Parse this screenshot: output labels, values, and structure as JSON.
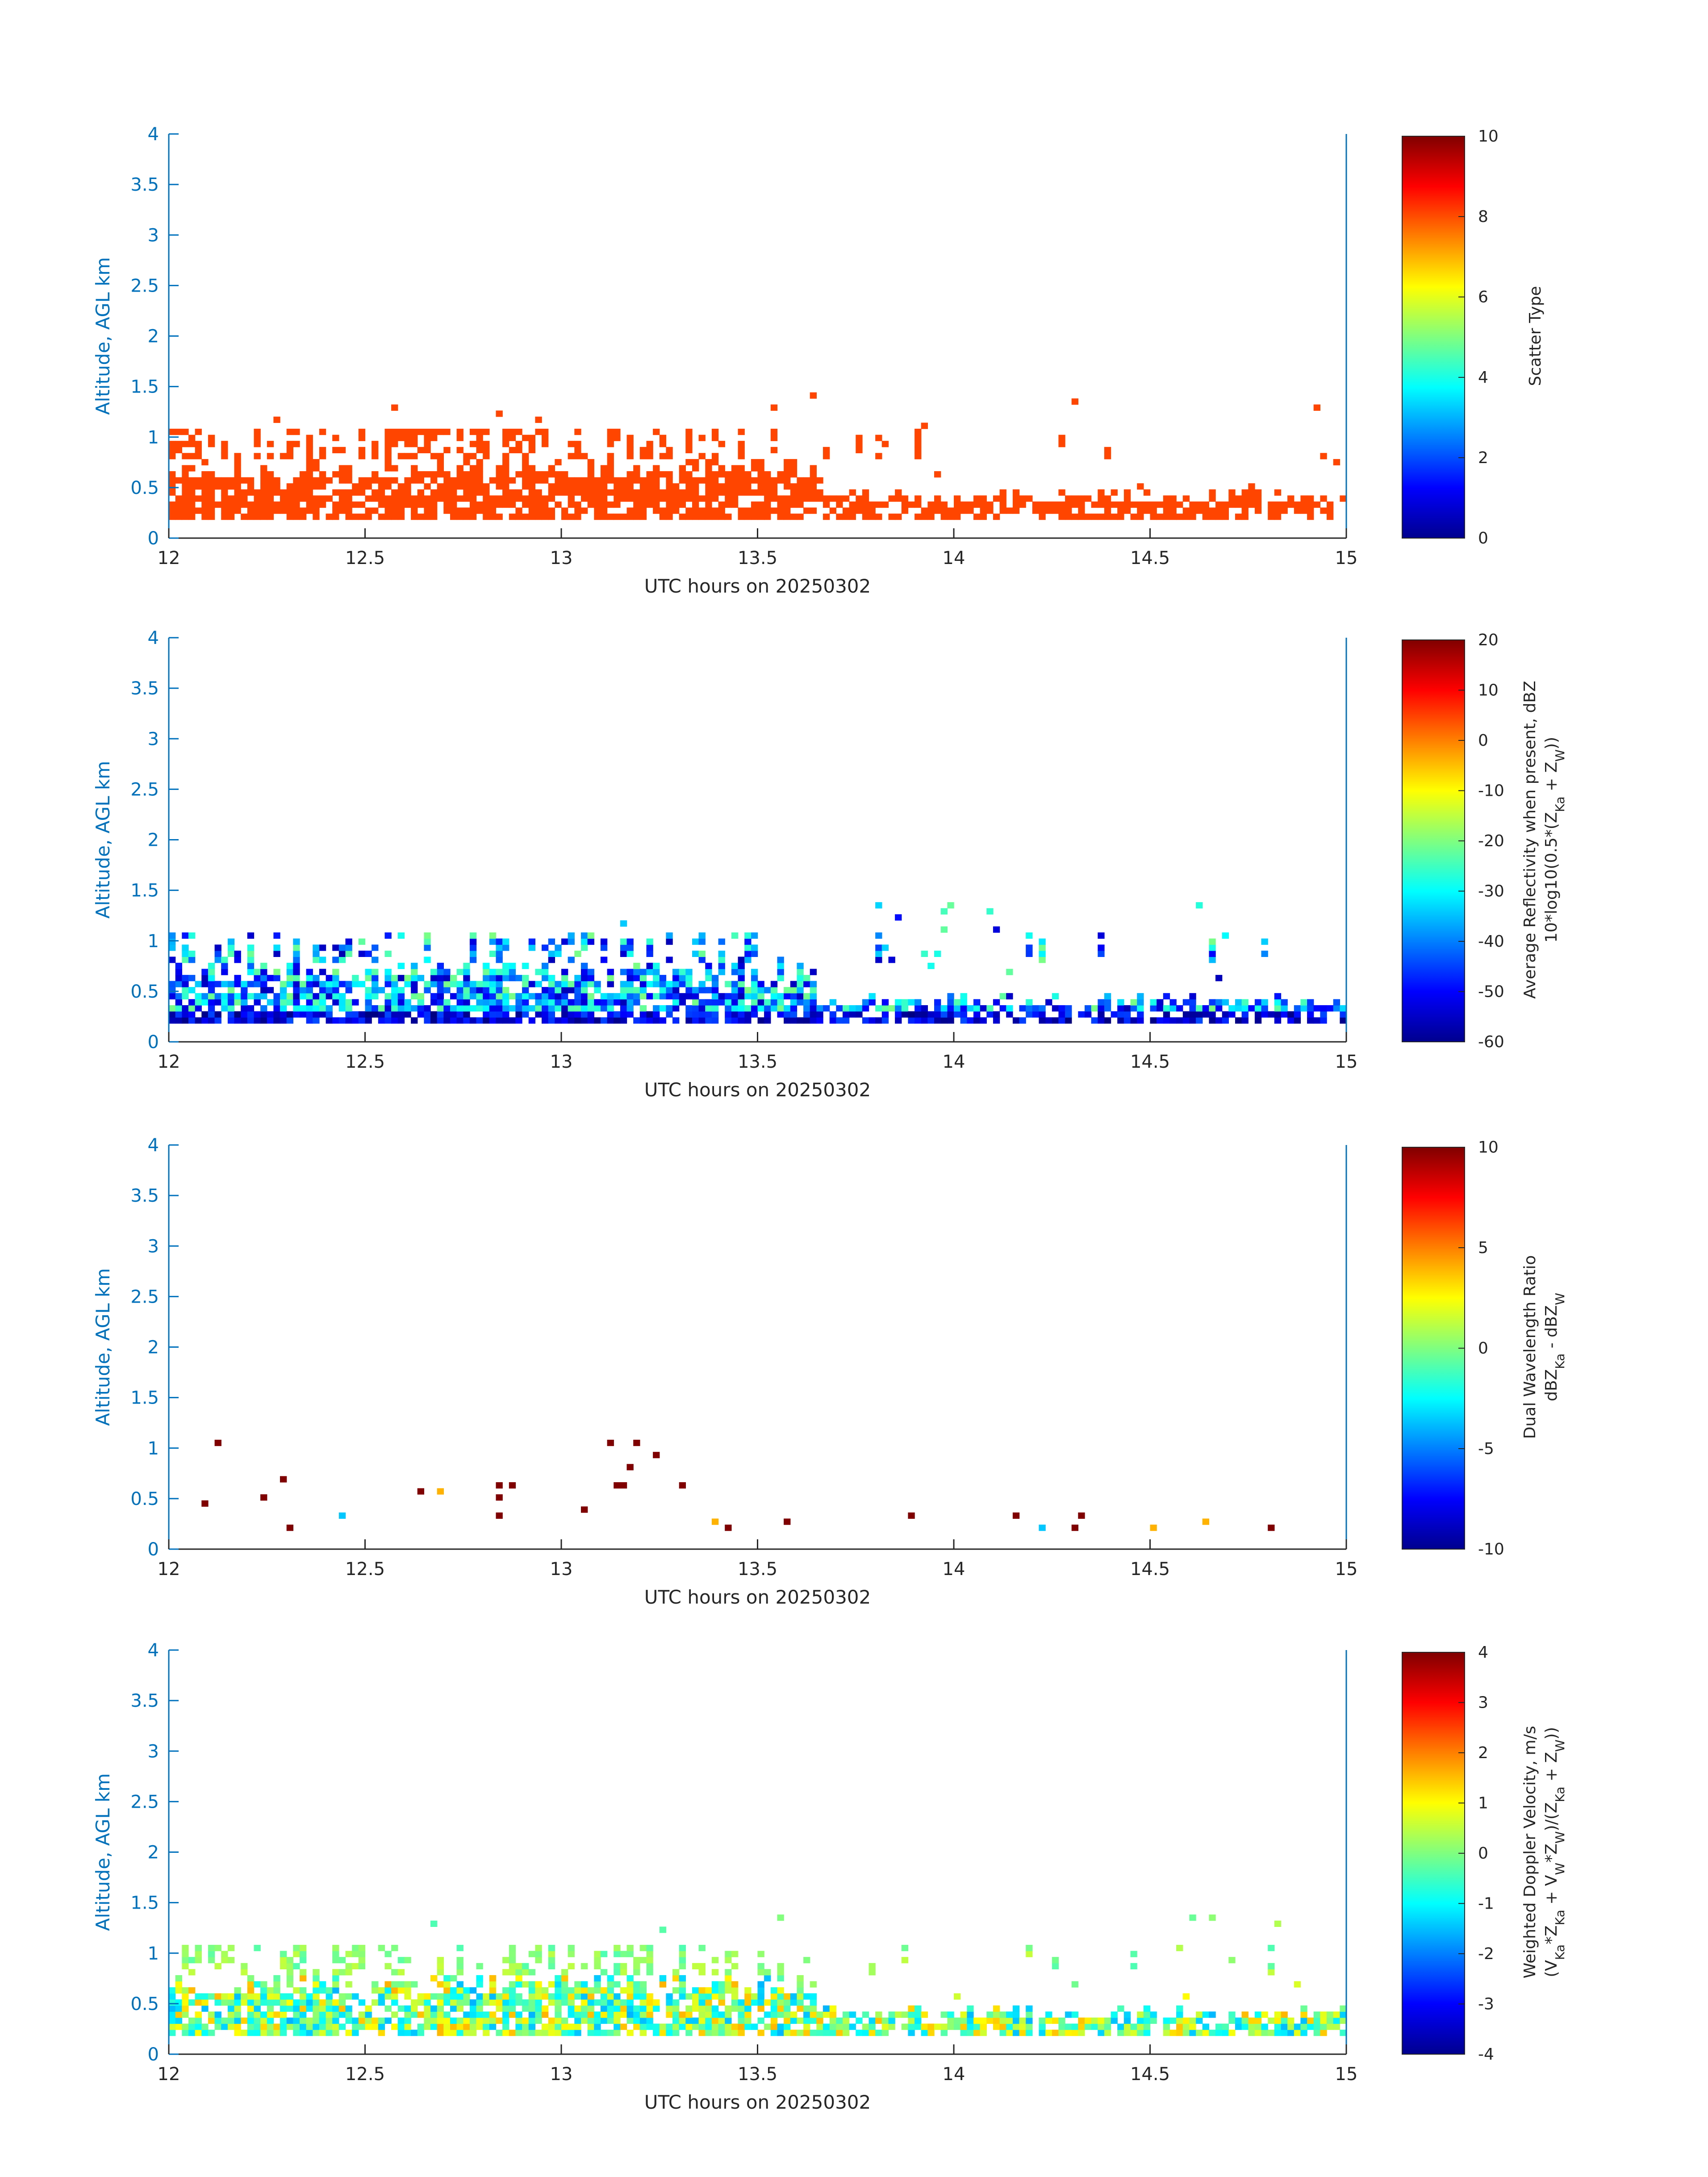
{
  "chart_data": [
    {
      "type": "heatmap",
      "xlabel": "UTC hours on 20250302",
      "ylabel": "Altitude, AGL km",
      "xlim": [
        12,
        15
      ],
      "ylim": [
        0,
        4
      ],
      "xticks": [
        "12",
        "12.5",
        "13",
        "13.5",
        "14",
        "14.5",
        "15"
      ],
      "yticks": [
        "0",
        "0.5",
        "1",
        "1.5",
        "2",
        "2.5",
        "3",
        "3.5",
        "4"
      ],
      "colorbar": {
        "label_lines": [
          "Scatter Type"
        ],
        "range": [
          0,
          10
        ],
        "ticks": [
          "0",
          "2",
          "4",
          "6",
          "8",
          "10"
        ],
        "colormap": "jet"
      },
      "field": "scatter",
      "seed": 11
    },
    {
      "type": "heatmap",
      "xlabel": "UTC hours on 20250302",
      "ylabel": "Altitude, AGL km",
      "xlim": [
        12,
        15
      ],
      "ylim": [
        0,
        4
      ],
      "xticks": [
        "12",
        "12.5",
        "13",
        "13.5",
        "14",
        "14.5",
        "15"
      ],
      "yticks": [
        "0",
        "0.5",
        "1",
        "1.5",
        "2",
        "2.5",
        "3",
        "3.5",
        "4"
      ],
      "colorbar": {
        "label_lines": [
          "Average Reflectivity when present, dBZ",
          "10*log10(0.5*(Z",
          "Ka",
          " + Z",
          "W",
          "))"
        ],
        "range": [
          -60,
          20
        ],
        "ticks": [
          "-60",
          "-50",
          "-40",
          "-30",
          "-20",
          "-10",
          "0",
          "10",
          "20"
        ],
        "colormap": "jet"
      },
      "field": "reflectivity",
      "seed": 23
    },
    {
      "type": "heatmap",
      "xlabel": "UTC hours on 20250302",
      "ylabel": "Altitude, AGL km",
      "xlim": [
        12,
        15
      ],
      "ylim": [
        0,
        4
      ],
      "xticks": [
        "12",
        "12.5",
        "13",
        "13.5",
        "14",
        "14.5",
        "15"
      ],
      "yticks": [
        "0",
        "0.5",
        "1",
        "1.5",
        "2",
        "2.5",
        "3",
        "3.5",
        "4"
      ],
      "colorbar": {
        "label_lines": [
          "Dual Wavelength Ratio",
          "dBZ",
          "Ka",
          " - dBZ",
          "W"
        ],
        "range": [
          -10,
          10
        ],
        "ticks": [
          "-10",
          "-5",
          "0",
          "5",
          "10"
        ],
        "colormap": "jet"
      },
      "field": "dwr",
      "seed": 37
    },
    {
      "type": "heatmap",
      "xlabel": "UTC hours on 20250302",
      "ylabel": "Altitude, AGL km",
      "xlim": [
        12,
        15
      ],
      "ylim": [
        0,
        4
      ],
      "xticks": [
        "12",
        "12.5",
        "13",
        "13.5",
        "14",
        "14.5",
        "15"
      ],
      "yticks": [
        "0",
        "0.5",
        "1",
        "1.5",
        "2",
        "2.5",
        "3",
        "3.5",
        "4"
      ],
      "colorbar": {
        "label_lines": [
          "Weighted Doppler Velocity, m/s",
          "(V",
          "Ka",
          "*Z",
          "Ka",
          " + V",
          "W",
          "*Z",
          "W",
          ")/(Z",
          "Ka",
          " + Z",
          "W",
          "))"
        ],
        "range": [
          -4,
          4
        ],
        "ticks": [
          "-4",
          "-3",
          "-2",
          "-1",
          "0",
          "1",
          "2",
          "3",
          "4"
        ],
        "colormap": "jet"
      },
      "field": "velocity",
      "seed": 51
    }
  ],
  "colors": {
    "axis_label": "#0072bd",
    "text": "#262626",
    "scatter_fill": "#ff4500"
  }
}
